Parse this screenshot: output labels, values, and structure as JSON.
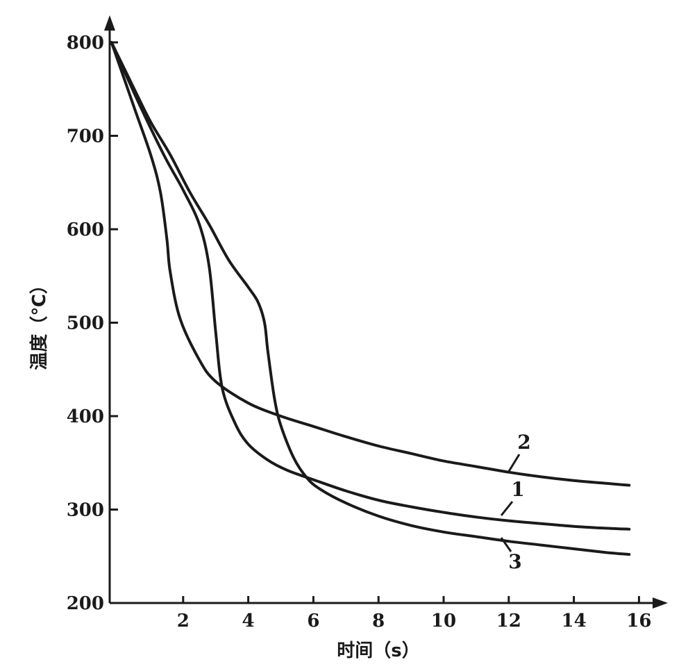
{
  "chart_data": {
    "type": "line",
    "xlabel": "时间（s）",
    "ylabel": "温度（℃）",
    "xlim": [
      0,
      16
    ],
    "ylim": [
      200,
      800
    ],
    "x_ticks": [
      2,
      4,
      6,
      8,
      10,
      12,
      14,
      16
    ],
    "y_ticks": [
      200,
      300,
      400,
      500,
      600,
      700,
      800
    ],
    "grid": false,
    "series": [
      {
        "name": "1",
        "points": [
          [
            -0.2,
            800
          ],
          [
            0.6,
            738
          ],
          [
            1.4,
            680
          ],
          [
            2.0,
            642
          ],
          [
            2.5,
            605
          ],
          [
            2.8,
            560
          ],
          [
            3.0,
            490
          ],
          [
            3.2,
            430
          ],
          [
            3.6,
            392
          ],
          [
            4.0,
            370
          ],
          [
            4.6,
            353
          ],
          [
            5.2,
            342
          ],
          [
            6.0,
            332
          ],
          [
            7.0,
            320
          ],
          [
            8.0,
            310
          ],
          [
            9.0,
            303
          ],
          [
            10.0,
            297
          ],
          [
            11.0,
            292
          ],
          [
            12.0,
            288
          ],
          [
            13.0,
            285
          ],
          [
            14.0,
            282
          ],
          [
            15.0,
            280
          ],
          [
            15.7,
            279
          ]
        ]
      },
      {
        "name": "2",
        "points": [
          [
            -0.2,
            800
          ],
          [
            0.5,
            730
          ],
          [
            1.0,
            680
          ],
          [
            1.3,
            640
          ],
          [
            1.5,
            590
          ],
          [
            1.6,
            555
          ],
          [
            1.9,
            505
          ],
          [
            2.5,
            460
          ],
          [
            3.0,
            437
          ],
          [
            4.0,
            414
          ],
          [
            5.0,
            400
          ],
          [
            6.0,
            389
          ],
          [
            7.0,
            378
          ],
          [
            8.0,
            368
          ],
          [
            9.0,
            360
          ],
          [
            10.0,
            352
          ],
          [
            11.0,
            346
          ],
          [
            12.0,
            340
          ],
          [
            13.0,
            335
          ],
          [
            14.0,
            331
          ],
          [
            15.0,
            328
          ],
          [
            15.7,
            326
          ]
        ]
      },
      {
        "name": "3",
        "points": [
          [
            -0.2,
            800
          ],
          [
            0.5,
            750
          ],
          [
            1.0,
            715
          ],
          [
            1.6,
            680
          ],
          [
            2.2,
            640
          ],
          [
            2.8,
            605
          ],
          [
            3.4,
            567
          ],
          [
            4.0,
            538
          ],
          [
            4.3,
            522
          ],
          [
            4.5,
            500
          ],
          [
            4.6,
            470
          ],
          [
            4.8,
            420
          ],
          [
            5.0,
            390
          ],
          [
            5.4,
            355
          ],
          [
            5.8,
            334
          ],
          [
            6.2,
            322
          ],
          [
            7.0,
            307
          ],
          [
            8.0,
            293
          ],
          [
            9.0,
            283
          ],
          [
            10.0,
            276
          ],
          [
            11.0,
            271
          ],
          [
            12.0,
            266
          ],
          [
            13.0,
            262
          ],
          [
            14.0,
            258
          ],
          [
            15.0,
            254
          ],
          [
            15.7,
            252
          ]
        ]
      }
    ]
  }
}
